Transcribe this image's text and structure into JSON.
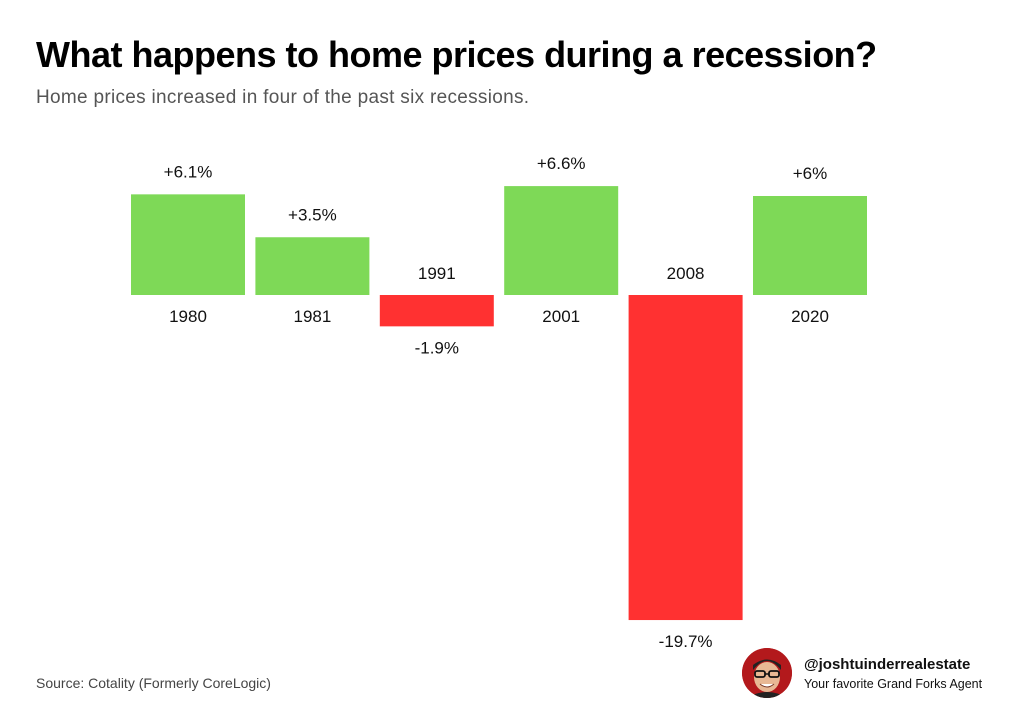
{
  "header": {
    "title": "What happens to home prices during a recession?",
    "subtitle": "Home prices increased in four of the past six recessions."
  },
  "footer": {
    "source": "Source: Cotality (Formerly CoreLogic)",
    "handle": "@joshtuinderrealestate",
    "tagline": "Your favorite Grand Forks Agent"
  },
  "colors": {
    "positive": "#7ed957",
    "negative": "#ff3131"
  },
  "chart_data": {
    "type": "bar",
    "categories": [
      "1980",
      "1981",
      "1991",
      "2001",
      "2008",
      "2020"
    ],
    "values": [
      6.1,
      3.5,
      -1.9,
      6.6,
      -19.7,
      6
    ],
    "value_labels": [
      "+6.1%",
      "+3.5%",
      "-1.9%",
      "+6.6%",
      "-19.7%",
      "+6%"
    ],
    "title": "What happens to home prices during a recession?",
    "subtitle": "Home prices increased in four of the past six recessions.",
    "xlabel": "",
    "ylabel": "",
    "grid": false,
    "legend": "none"
  }
}
